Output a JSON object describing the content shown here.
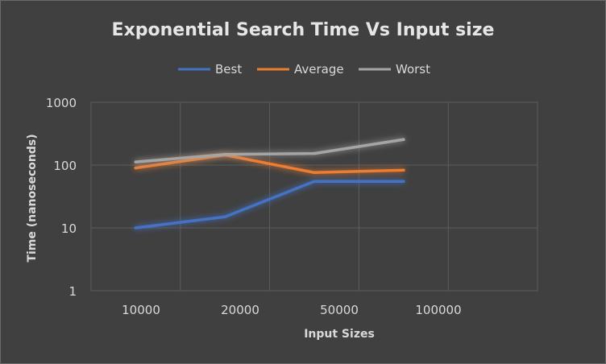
{
  "chart_data": {
    "type": "line",
    "title": "Exponential Search Time Vs Input size",
    "xlabel": "Input Sizes",
    "ylabel": "Time (nanoseconds)",
    "y_scale": "log",
    "ylim": [
      1,
      1000
    ],
    "y_ticks": [
      "1",
      "10",
      "100",
      "1000"
    ],
    "categories": [
      "10000",
      "20000",
      "50000",
      "100000"
    ],
    "grid": true,
    "legend_position": "top",
    "series": [
      {
        "name": "Best",
        "color": "#4472c4",
        "values": [
          10,
          15,
          55,
          55
        ]
      },
      {
        "name": "Average",
        "color": "#ed7d31",
        "values": [
          90,
          145,
          76,
          83
        ]
      },
      {
        "name": "Worst",
        "color": "#a5a5a5",
        "values": [
          112,
          148,
          153,
          255
        ]
      }
    ]
  }
}
